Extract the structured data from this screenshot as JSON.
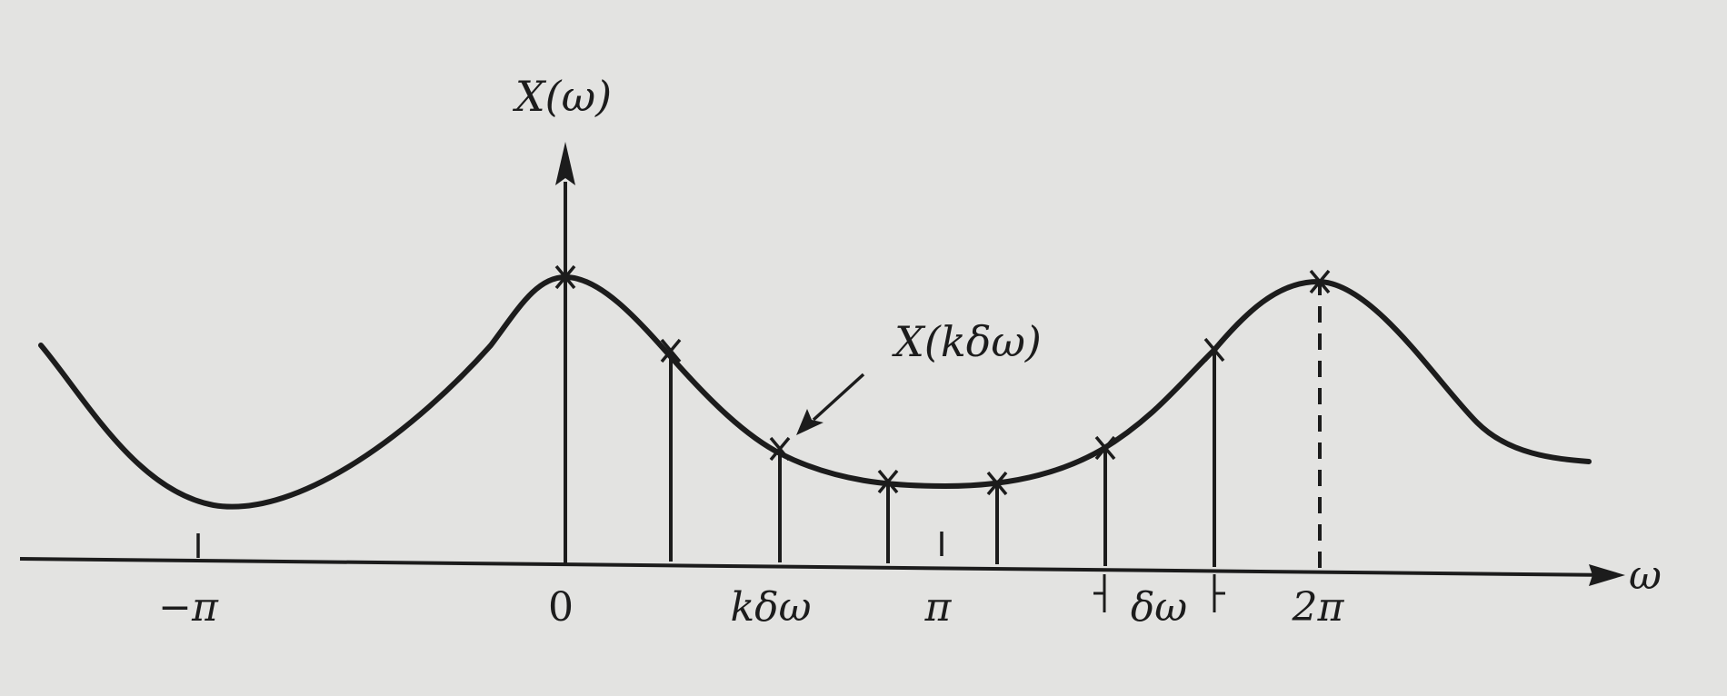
{
  "figure": {
    "y_axis_label": "X(ω)",
    "x_axis_label": "ω",
    "sample_label": "X(kδω)",
    "ticks": {
      "neg_pi": "−π",
      "zero": "0",
      "k_delta_omega": "kδω",
      "pi": "π",
      "delta_omega": "δω",
      "two_pi": "2π"
    },
    "colors": {
      "background": "#e3e3e1",
      "ink": "#1c1c1c"
    }
  }
}
